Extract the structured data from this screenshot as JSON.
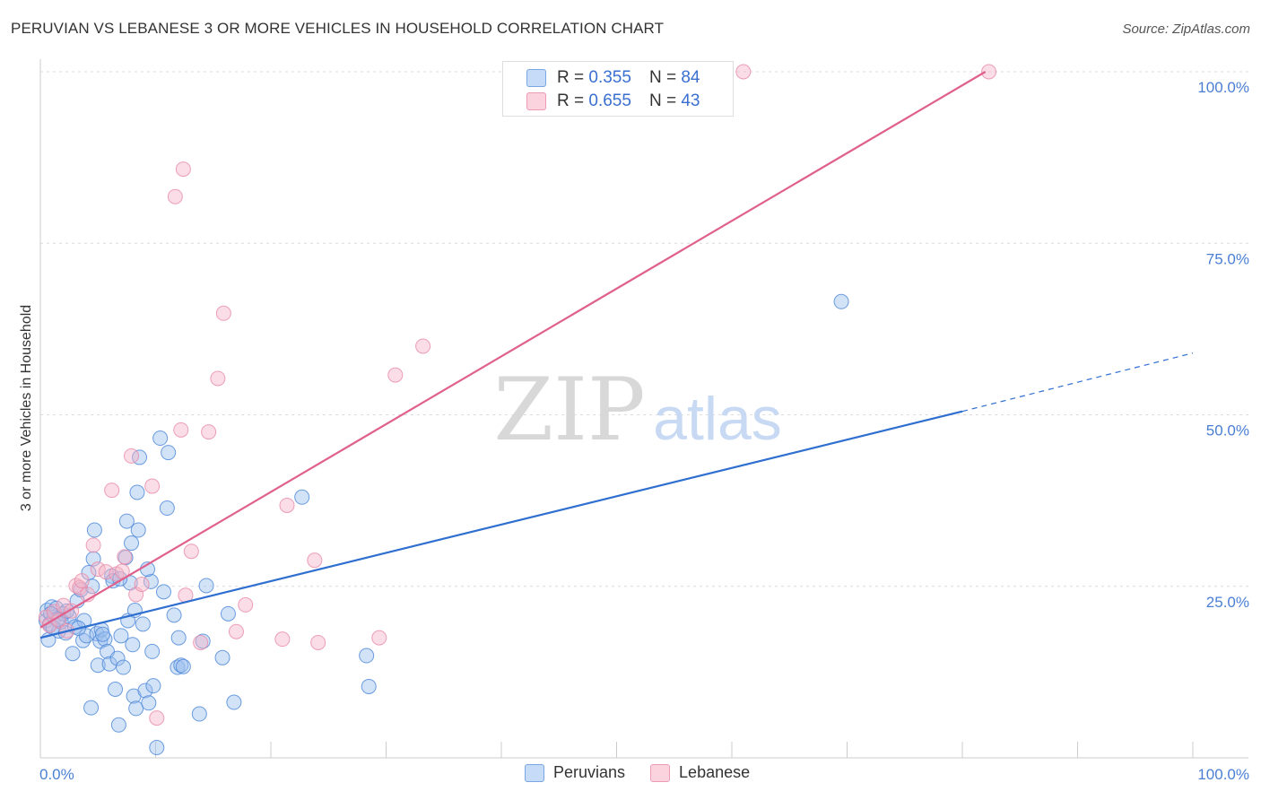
{
  "title": "PERUVIAN VS LEBANESE 3 OR MORE VEHICLES IN HOUSEHOLD CORRELATION CHART",
  "source": "Source: ZipAtlas.com",
  "watermark": {
    "zip": "ZIP",
    "atlas": "atlas"
  },
  "legend": {
    "rows": [
      {
        "r_label": "R =",
        "r_value": "0.355",
        "n_label": "N =",
        "n_value": "84",
        "color": "#9bbfee"
      },
      {
        "r_label": "R =",
        "r_value": "0.655",
        "n_label": "N =",
        "n_value": "43",
        "color": "#f5b4c8"
      }
    ]
  },
  "bottom_legend": [
    {
      "label": "Peruvians",
      "color": "#9bbfee"
    },
    {
      "label": "Lebanese",
      "color": "#f5b4c8"
    }
  ],
  "chart_data": {
    "type": "scatter",
    "title": "PERUVIAN VS LEBANESE 3 OR MORE VEHICLES IN HOUSEHOLD CORRELATION CHART",
    "xlabel": "",
    "ylabel": "3 or more Vehicles in Household",
    "xlim": [
      0,
      100
    ],
    "ylim": [
      0,
      100
    ],
    "x_tick_labels": [
      "0.0%",
      "100.0%"
    ],
    "y_ticks": [
      25,
      50,
      75,
      100
    ],
    "y_tick_labels": [
      "25.0%",
      "50.0%",
      "75.0%",
      "100.0%"
    ],
    "grid": true,
    "series": [
      {
        "name": "Peruvians",
        "color": "#4a86d8",
        "fill": "#9bbfee",
        "line_color": "#2f6fd0",
        "trend": {
          "x0": 0,
          "y0": 17.5,
          "x1": 80,
          "y1": 50.5,
          "dashed_to_x": 100,
          "dashed_to_y": 59
        },
        "points": [
          [
            0.5,
            20.0
          ],
          [
            0.6,
            21.5
          ],
          [
            0.7,
            17.2
          ],
          [
            0.8,
            19.5
          ],
          [
            1.0,
            22.0
          ],
          [
            1.2,
            20.5
          ],
          [
            1.4,
            21.8
          ],
          [
            1.6,
            18.5
          ],
          [
            1.8,
            19.8
          ],
          [
            2.0,
            21.0
          ],
          [
            2.2,
            18.2
          ],
          [
            2.5,
            20.6
          ],
          [
            2.8,
            15.2
          ],
          [
            3.0,
            19.1
          ],
          [
            3.2,
            22.9
          ],
          [
            3.5,
            24.5
          ],
          [
            3.7,
            17.1
          ],
          [
            3.8,
            20.0
          ],
          [
            4.0,
            17.8
          ],
          [
            4.2,
            27.0
          ],
          [
            4.4,
            7.3
          ],
          [
            4.5,
            25.0
          ],
          [
            4.6,
            29.0
          ],
          [
            4.7,
            33.2
          ],
          [
            4.9,
            18.1
          ],
          [
            5.0,
            13.5
          ],
          [
            5.2,
            17.0
          ],
          [
            5.3,
            18.7
          ],
          [
            5.6,
            17.3
          ],
          [
            5.8,
            15.5
          ],
          [
            6.0,
            13.7
          ],
          [
            6.2,
            26.5
          ],
          [
            6.3,
            25.8
          ],
          [
            6.5,
            10.0
          ],
          [
            6.7,
            14.5
          ],
          [
            6.8,
            4.8
          ],
          [
            7.0,
            17.8
          ],
          [
            7.2,
            13.2
          ],
          [
            7.4,
            29.2
          ],
          [
            7.5,
            34.5
          ],
          [
            7.6,
            20.0
          ],
          [
            7.8,
            25.5
          ],
          [
            7.9,
            31.3
          ],
          [
            8.0,
            16.5
          ],
          [
            8.1,
            9.0
          ],
          [
            8.3,
            7.2
          ],
          [
            8.4,
            38.7
          ],
          [
            8.5,
            33.2
          ],
          [
            8.6,
            43.8
          ],
          [
            8.9,
            19.5
          ],
          [
            9.1,
            9.8
          ],
          [
            9.4,
            8.0
          ],
          [
            9.6,
            25.7
          ],
          [
            9.7,
            15.5
          ],
          [
            9.8,
            10.5
          ],
          [
            10.1,
            1.5
          ],
          [
            10.4,
            46.6
          ],
          [
            11.0,
            36.4
          ],
          [
            11.1,
            44.5
          ],
          [
            11.6,
            20.8
          ],
          [
            11.9,
            13.2
          ],
          [
            12.0,
            17.5
          ],
          [
            12.2,
            13.5
          ],
          [
            12.4,
            13.3
          ],
          [
            13.8,
            6.4
          ],
          [
            14.1,
            17.0
          ],
          [
            14.4,
            25.1
          ],
          [
            15.8,
            14.6
          ],
          [
            16.3,
            21.0
          ],
          [
            16.8,
            8.1
          ],
          [
            22.7,
            38.0
          ],
          [
            28.3,
            14.9
          ],
          [
            28.5,
            10.4
          ],
          [
            69.5,
            66.5
          ],
          [
            0.9,
            21.0
          ],
          [
            1.1,
            19.0
          ],
          [
            1.5,
            20.2
          ],
          [
            2.3,
            21.4
          ],
          [
            3.3,
            18.9
          ],
          [
            5.4,
            18.0
          ],
          [
            6.9,
            26.1
          ],
          [
            8.2,
            21.5
          ],
          [
            9.3,
            27.5
          ],
          [
            10.7,
            24.2
          ]
        ]
      },
      {
        "name": "Lebanese",
        "color": "#e88aa8",
        "fill": "#f5b4c8",
        "line_color": "#e0608c",
        "trend": {
          "x0": 0,
          "y0": 19.0,
          "x1": 82,
          "y1": 100
        },
        "points": [
          [
            0.5,
            20.5
          ],
          [
            0.8,
            19.3
          ],
          [
            1.2,
            21.3
          ],
          [
            1.6,
            20.0
          ],
          [
            2.0,
            22.2
          ],
          [
            2.3,
            18.5
          ],
          [
            2.7,
            21.4
          ],
          [
            3.1,
            25.1
          ],
          [
            3.4,
            24.8
          ],
          [
            3.6,
            25.8
          ],
          [
            4.1,
            23.8
          ],
          [
            4.6,
            31.0
          ],
          [
            5.0,
            27.5
          ],
          [
            5.7,
            27.1
          ],
          [
            6.2,
            39.0
          ],
          [
            6.6,
            26.8
          ],
          [
            7.1,
            27.2
          ],
          [
            7.3,
            29.3
          ],
          [
            7.9,
            44.0
          ],
          [
            8.3,
            23.8
          ],
          [
            8.8,
            25.3
          ],
          [
            9.7,
            39.6
          ],
          [
            10.1,
            5.8
          ],
          [
            11.7,
            81.8
          ],
          [
            12.4,
            85.8
          ],
          [
            12.6,
            23.7
          ],
          [
            13.1,
            30.1
          ],
          [
            13.9,
            16.8
          ],
          [
            14.6,
            47.5
          ],
          [
            15.4,
            55.3
          ],
          [
            15.9,
            64.8
          ],
          [
            17.0,
            18.4
          ],
          [
            17.8,
            22.3
          ],
          [
            21.0,
            17.3
          ],
          [
            21.4,
            36.8
          ],
          [
            23.8,
            28.8
          ],
          [
            24.1,
            16.8
          ],
          [
            29.4,
            17.5
          ],
          [
            30.8,
            55.8
          ],
          [
            33.2,
            60.0
          ],
          [
            61.0,
            100.0
          ],
          [
            82.3,
            100.0
          ],
          [
            12.2,
            47.8
          ]
        ]
      }
    ]
  }
}
